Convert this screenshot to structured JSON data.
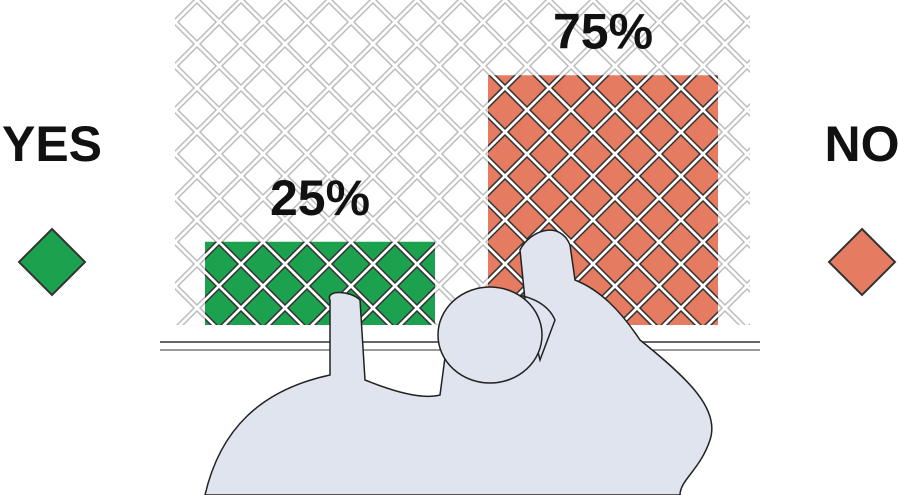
{
  "chart_data": {
    "type": "bar",
    "categories": [
      "YES",
      "NO"
    ],
    "values": [
      25,
      75
    ],
    "value_labels": [
      "25%",
      "75%"
    ],
    "colors": [
      "#1ca24e",
      "#e57c62"
    ]
  }
}
